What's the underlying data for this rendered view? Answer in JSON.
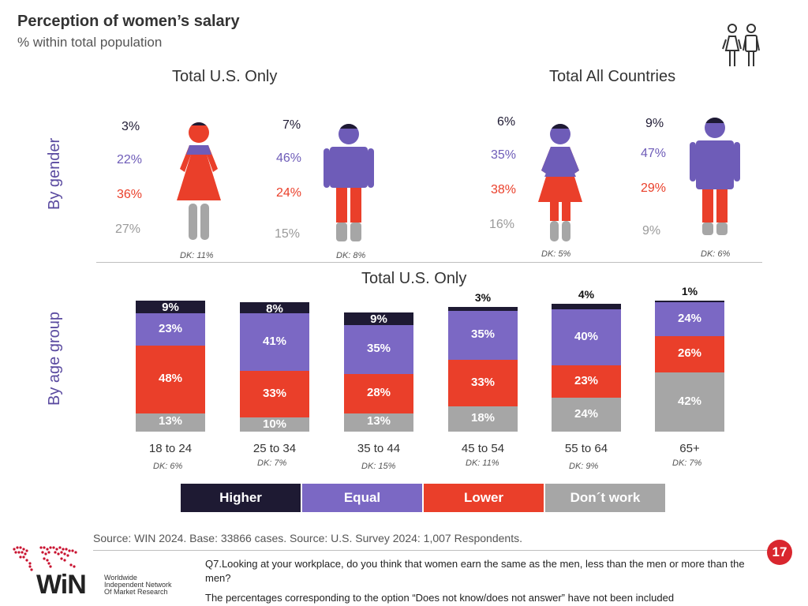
{
  "header": {
    "title": "Perception of women’s salary",
    "subtitle": "% within total population"
  },
  "icons": {
    "top_right": "people-icon"
  },
  "sections": {
    "us_only": "Total U.S. Only",
    "all_countries": "Total All Countries",
    "age_title": "Total U.S. Only"
  },
  "row_labels": {
    "gender": "By gender",
    "age": "By age group"
  },
  "colors": {
    "higher": "#1e1a33",
    "equal": "#6e5cb8",
    "lower": "#ea3f2a",
    "dont_work": "#a6a6a6",
    "logo_red": "#c8102e"
  },
  "gender": [
    {
      "group": "us-women",
      "higher": "3%",
      "equal": "22%",
      "lower": "36%",
      "dont_work": "27%",
      "dk": "DK: 11%"
    },
    {
      "group": "us-men",
      "higher": "7%",
      "equal": "46%",
      "lower": "24%",
      "dont_work": "15%",
      "dk": "DK: 8%"
    },
    {
      "group": "all-women",
      "higher": "6%",
      "equal": "35%",
      "lower": "38%",
      "dont_work": "16%",
      "dk": "DK: 5%"
    },
    {
      "group": "all-men",
      "higher": "9%",
      "equal": "47%",
      "lower": "29%",
      "dont_work": "9%",
      "dk": "DK: 6%"
    }
  ],
  "chart_data": {
    "type": "bar",
    "stacked": true,
    "title": "Total U.S. Only",
    "categories": [
      "18 to 24",
      "25 to 34",
      "35 to 44",
      "45 to 54",
      "55 to 64",
      "65+"
    ],
    "series": [
      {
        "name": "Higher",
        "values": [
          9,
          8,
          9,
          3,
          4,
          1
        ]
      },
      {
        "name": "Equal",
        "values": [
          23,
          41,
          35,
          35,
          40,
          24
        ]
      },
      {
        "name": "Lower",
        "values": [
          48,
          33,
          28,
          33,
          23,
          26
        ]
      },
      {
        "name": "Don´t work",
        "values": [
          13,
          10,
          13,
          18,
          24,
          42
        ]
      }
    ],
    "dk_labels": [
      "DK: 6%",
      "DK: 7%",
      "DK: 15%",
      "DK: 11%",
      "DK: 9%",
      "DK: 7%"
    ],
    "legend": [
      "Higher",
      "Equal",
      "Lower",
      "Don´t work"
    ],
    "ylim": [
      0,
      100
    ]
  },
  "footer": {
    "source": "Source: WIN 2024. Base: 33866 cases.  Source: U.S. Survey 2024: 1,007 Respondents.",
    "question": "Q7.Looking at your workplace, do you think that women earn the same as the men, less than the men or more than the men?",
    "note": "The percentages corresponding to the option “Does not know/does not answer” have not been included",
    "page_number": "17",
    "logo_text": "WiN",
    "logo_sub": [
      "Worldwide",
      "Independent Network",
      "Of Market Research"
    ]
  }
}
